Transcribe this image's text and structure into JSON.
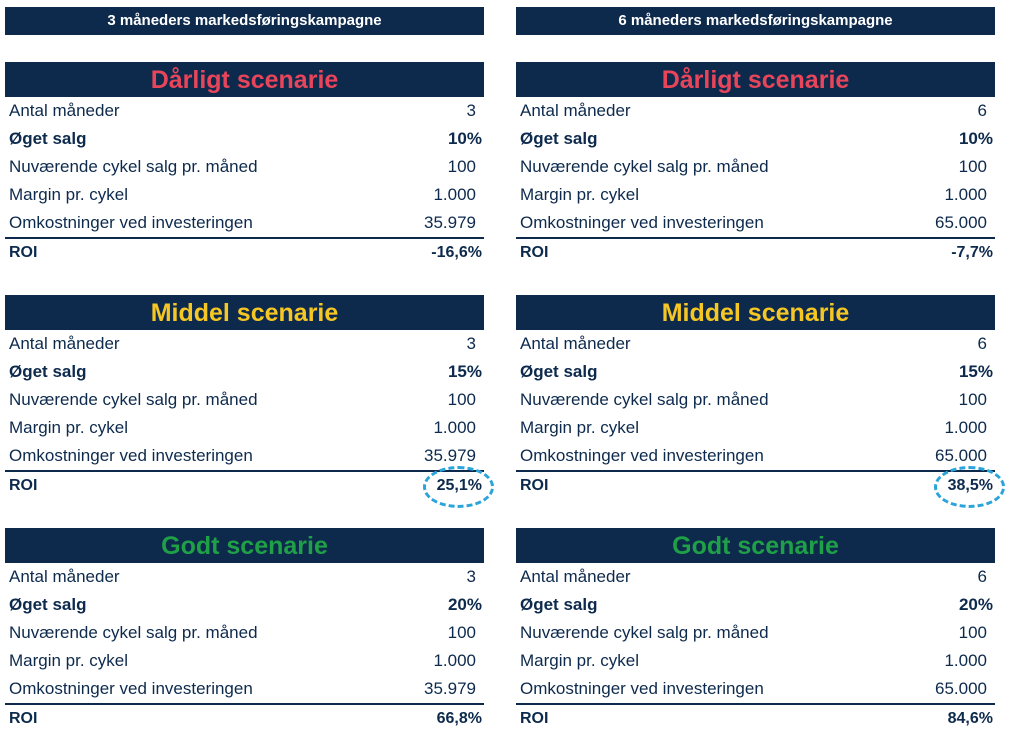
{
  "columns": [
    {
      "header": "3 måneders markedsføringskampagne",
      "scenarios": [
        {
          "title": "Dårligt scenarie",
          "rows": [
            [
              "Antal måneder",
              "3"
            ],
            [
              "Øget salg",
              "10%"
            ],
            [
              "Nuværende cykel salg pr. måned",
              "100"
            ],
            [
              "Margin pr. cykel",
              "1.000"
            ],
            [
              "Omkostninger ved investeringen",
              "35.979"
            ]
          ],
          "roi": [
            "ROI",
            "-16,6%"
          ]
        },
        {
          "title": "Middel scenarie",
          "rows": [
            [
              "Antal måneder",
              "3"
            ],
            [
              "Øget salg",
              "15%"
            ],
            [
              "Nuværende cykel salg pr. måned",
              "100"
            ],
            [
              "Margin pr. cykel",
              "1.000"
            ],
            [
              "Omkostninger ved investeringen",
              "35.979"
            ]
          ],
          "roi": [
            "ROI",
            "25,1%"
          ]
        },
        {
          "title": "Godt scenarie",
          "rows": [
            [
              "Antal måneder",
              "3"
            ],
            [
              "Øget salg",
              "20%"
            ],
            [
              "Nuværende cykel salg pr. måned",
              "100"
            ],
            [
              "Margin pr. cykel",
              "1.000"
            ],
            [
              "Omkostninger ved investeringen",
              "35.979"
            ]
          ],
          "roi": [
            "ROI",
            "66,8%"
          ]
        }
      ]
    },
    {
      "header": "6 måneders markedsføringskampagne",
      "scenarios": [
        {
          "title": "Dårligt scenarie",
          "rows": [
            [
              "Antal måneder",
              "6"
            ],
            [
              "Øget salg",
              "10%"
            ],
            [
              "Nuværende cykel salg pr. måned",
              "100"
            ],
            [
              "Margin pr. cykel",
              "1.000"
            ],
            [
              "Omkostninger ved investeringen",
              "65.000"
            ]
          ],
          "roi": [
            "ROI",
            "-7,7%"
          ]
        },
        {
          "title": "Middel scenarie",
          "rows": [
            [
              "Antal måneder",
              "6"
            ],
            [
              "Øget salg",
              "15%"
            ],
            [
              "Nuværende cykel salg pr. måned",
              "100"
            ],
            [
              "Margin pr. cykel",
              "1.000"
            ],
            [
              "Omkostninger ved investeringen",
              "65.000"
            ]
          ],
          "roi": [
            "ROI",
            "38,5%"
          ]
        },
        {
          "title": "Godt scenarie",
          "rows": [
            [
              "Antal måneder",
              "6"
            ],
            [
              "Øget salg",
              "20%"
            ],
            [
              "Nuværende cykel salg pr. måned",
              "100"
            ],
            [
              "Margin pr. cykel",
              "1.000"
            ],
            [
              "Omkostninger ved investeringen",
              "65.000"
            ]
          ],
          "roi": [
            "ROI",
            "84,6%"
          ]
        }
      ]
    }
  ]
}
